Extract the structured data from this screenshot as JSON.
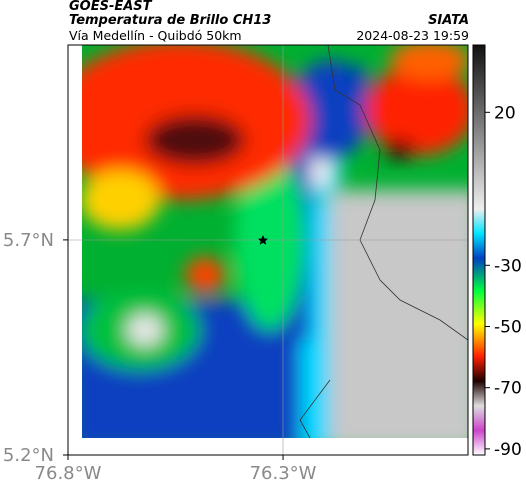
{
  "header": {
    "title": "GOES-EAST",
    "subtitle": "Temperatura de Brillo CH13",
    "location": "Vía Medellín - Quibdó 50km",
    "source": "SIATA",
    "datetime": "2024-08-23 19:59"
  },
  "map": {
    "xlim": [
      -76.8,
      -75.87
    ],
    "ylim": [
      5.2,
      6.153
    ],
    "xticks": [
      {
        "value": -76.8,
        "label": "76.8°W"
      },
      {
        "value": -76.3,
        "label": "76.3°W"
      }
    ],
    "yticks": [
      {
        "value": 5.2,
        "label": "5.2°N"
      },
      {
        "value": 5.7,
        "label": "5.7°N"
      }
    ]
  },
  "colorbar": {
    "lim": [
      -92,
      42
    ],
    "ticks": [
      20,
      -30,
      -50,
      -70,
      -90
    ]
  }
}
